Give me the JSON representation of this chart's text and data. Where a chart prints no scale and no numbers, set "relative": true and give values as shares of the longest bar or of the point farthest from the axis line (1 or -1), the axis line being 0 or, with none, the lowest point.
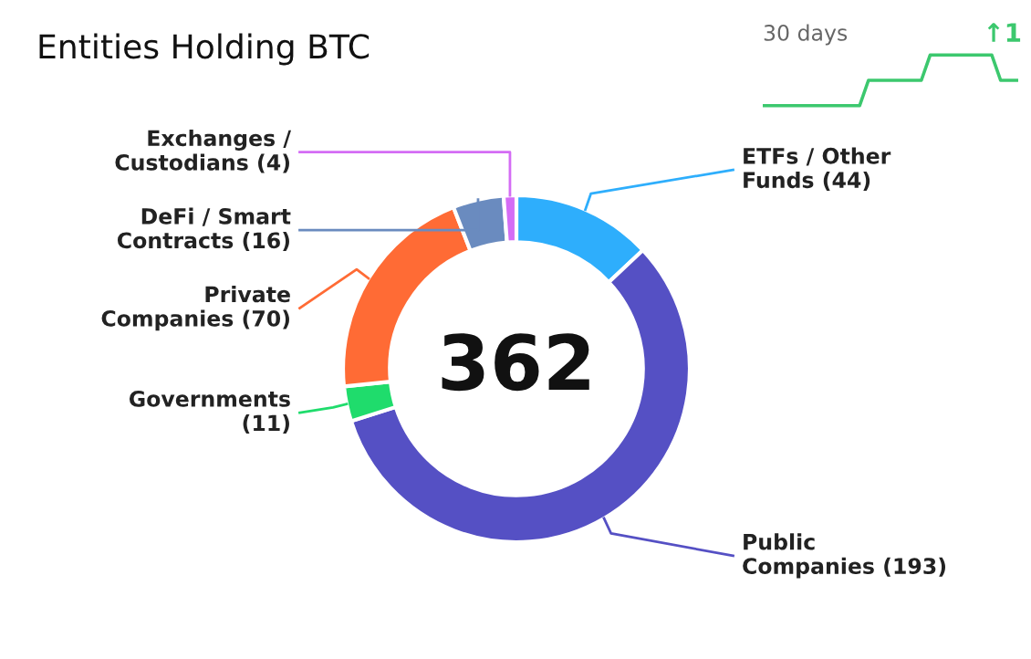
{
  "chart_data": [
    {
      "type": "donut",
      "title": "Entities Holding BTC",
      "annotations": [
        "362"
      ],
      "value_labels": [
        "(44)",
        "(193)",
        "(11)",
        "(70)",
        "(16)",
        "(4)"
      ],
      "categories": [
        "ETFs / Other\nFunds",
        "Public\nCompanies",
        "Governments",
        "Private\nCompanies",
        "DeFi / Smart\nContracts",
        "Exchanges /\nCustodians"
      ],
      "values": [
        44,
        193,
        11,
        70,
        16,
        4
      ],
      "colors": [
        "#2eaefc",
        "#5550c4",
        "#1fdc6c",
        "#ff6b35",
        "#6a8bbf",
        "#d46cf5"
      ]
    },
    {
      "type": "line",
      "title": "30 days",
      "annotations": [
        "↑1"
      ],
      "relative": true,
      "categories": [
        null,
        null,
        null,
        null,
        null,
        null,
        null,
        null,
        null,
        null,
        null,
        null,
        null,
        null,
        null,
        null,
        null,
        null,
        null,
        null,
        null,
        null,
        null,
        null,
        null,
        null,
        null,
        null,
        null,
        null
      ],
      "series": [
        {
          "color": "#3cc86e",
          "values": [
            0,
            0,
            0,
            0,
            0,
            0,
            0,
            0,
            0,
            0,
            0,
            0,
            0.5,
            0.5,
            0.5,
            0.5,
            0.5,
            0.5,
            0.5,
            1,
            1,
            1,
            1,
            1,
            1,
            1,
            1,
            0.5,
            0.5,
            0.5
          ]
        }
      ]
    }
  ]
}
